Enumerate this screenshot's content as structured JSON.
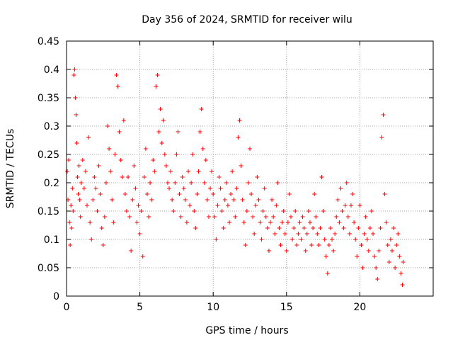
{
  "chart_data": {
    "type": "scatter",
    "title": "Day 356 of 2024, SRMTID for receiver wilu",
    "xlabel": "GPS time / hours",
    "ylabel": "SRMTID / TECUs",
    "xlim": [
      0,
      25
    ],
    "ylim": [
      0,
      0.45
    ],
    "xticks": [
      0,
      5,
      10,
      15,
      20
    ],
    "xtick_labels": [
      "0",
      "5",
      "10",
      "15",
      "20"
    ],
    "yticks": [
      0,
      0.05,
      0.1,
      0.15,
      0.2,
      0.25,
      0.3,
      0.35,
      0.4,
      0.45
    ],
    "ytick_labels": [
      "0",
      "0.05",
      "0.1",
      "0.15",
      "0.2",
      "0.25",
      "0.3",
      "0.35",
      "0.4",
      "0.45"
    ],
    "grid": true,
    "marker": "+",
    "color": "#ff0000",
    "series": [
      {
        "name": "SRMTID",
        "points": [
          [
            0.05,
            0.22
          ],
          [
            0.1,
            0.17
          ],
          [
            0.15,
            0.24
          ],
          [
            0.2,
            0.13
          ],
          [
            0.25,
            0.09
          ],
          [
            0.3,
            0.16
          ],
          [
            0.35,
            0.12
          ],
          [
            0.4,
            0.19
          ],
          [
            0.45,
            0.15
          ],
          [
            0.5,
            0.39
          ],
          [
            0.55,
            0.4
          ],
          [
            0.6,
            0.35
          ],
          [
            0.65,
            0.32
          ],
          [
            0.7,
            0.27
          ],
          [
            0.75,
            0.21
          ],
          [
            0.8,
            0.18
          ],
          [
            0.85,
            0.23
          ],
          [
            0.9,
            0.17
          ],
          [
            0.95,
            0.14
          ],
          [
            1.0,
            0.2
          ],
          [
            1.1,
            0.24
          ],
          [
            1.2,
            0.19
          ],
          [
            1.3,
            0.22
          ],
          [
            1.4,
            0.16
          ],
          [
            1.5,
            0.28
          ],
          [
            1.6,
            0.13
          ],
          [
            1.7,
            0.1
          ],
          [
            1.8,
            0.17
          ],
          [
            1.9,
            0.21
          ],
          [
            2.0,
            0.19
          ],
          [
            2.1,
            0.15
          ],
          [
            2.2,
            0.23
          ],
          [
            2.3,
            0.18
          ],
          [
            2.4,
            0.12
          ],
          [
            2.5,
            0.09
          ],
          [
            2.6,
            0.14
          ],
          [
            2.7,
            0.2
          ],
          [
            2.8,
            0.3
          ],
          [
            2.9,
            0.26
          ],
          [
            3.0,
            0.22
          ],
          [
            3.1,
            0.17
          ],
          [
            3.2,
            0.13
          ],
          [
            3.3,
            0.25
          ],
          [
            3.4,
            0.39
          ],
          [
            3.5,
            0.37
          ],
          [
            3.6,
            0.29
          ],
          [
            3.7,
            0.24
          ],
          [
            3.8,
            0.21
          ],
          [
            3.9,
            0.31
          ],
          [
            4.0,
            0.18
          ],
          [
            4.1,
            0.15
          ],
          [
            4.2,
            0.21
          ],
          [
            4.3,
            0.14
          ],
          [
            4.4,
            0.08
          ],
          [
            4.5,
            0.17
          ],
          [
            4.6,
            0.23
          ],
          [
            4.7,
            0.19
          ],
          [
            4.8,
            0.13
          ],
          [
            4.9,
            0.16
          ],
          [
            5.0,
            0.11
          ],
          [
            5.1,
            0.15
          ],
          [
            5.2,
            0.07
          ],
          [
            5.3,
            0.21
          ],
          [
            5.4,
            0.26
          ],
          [
            5.5,
            0.18
          ],
          [
            5.6,
            0.14
          ],
          [
            5.7,
            0.2
          ],
          [
            5.8,
            0.17
          ],
          [
            5.9,
            0.24
          ],
          [
            6.0,
            0.22
          ],
          [
            6.1,
            0.37
          ],
          [
            6.2,
            0.39
          ],
          [
            6.3,
            0.29
          ],
          [
            6.4,
            0.33
          ],
          [
            6.5,
            0.27
          ],
          [
            6.6,
            0.31
          ],
          [
            6.7,
            0.25
          ],
          [
            6.8,
            0.23
          ],
          [
            6.9,
            0.2
          ],
          [
            7.0,
            0.19
          ],
          [
            7.1,
            0.22
          ],
          [
            7.2,
            0.17
          ],
          [
            7.3,
            0.15
          ],
          [
            7.4,
            0.2
          ],
          [
            7.5,
            0.25
          ],
          [
            7.6,
            0.29
          ],
          [
            7.7,
            0.18
          ],
          [
            7.8,
            0.14
          ],
          [
            7.9,
            0.21
          ],
          [
            8.0,
            0.19
          ],
          [
            8.1,
            0.17
          ],
          [
            8.2,
            0.13
          ],
          [
            8.3,
            0.22
          ],
          [
            8.4,
            0.16
          ],
          [
            8.5,
            0.2
          ],
          [
            8.6,
            0.25
          ],
          [
            8.7,
            0.15
          ],
          [
            8.8,
            0.12
          ],
          [
            8.9,
            0.18
          ],
          [
            9.0,
            0.22
          ],
          [
            9.1,
            0.29
          ],
          [
            9.2,
            0.33
          ],
          [
            9.3,
            0.26
          ],
          [
            9.4,
            0.2
          ],
          [
            9.5,
            0.24
          ],
          [
            9.6,
            0.17
          ],
          [
            9.7,
            0.14
          ],
          [
            9.8,
            0.19
          ],
          [
            9.9,
            0.22
          ],
          [
            10.0,
            0.18
          ],
          [
            10.1,
            0.14
          ],
          [
            10.2,
            0.1
          ],
          [
            10.3,
            0.16
          ],
          [
            10.4,
            0.21
          ],
          [
            10.5,
            0.19
          ],
          [
            10.6,
            0.15
          ],
          [
            10.7,
            0.12
          ],
          [
            10.8,
            0.17
          ],
          [
            10.9,
            0.2
          ],
          [
            11.0,
            0.16
          ],
          [
            11.1,
            0.13
          ],
          [
            11.2,
            0.18
          ],
          [
            11.3,
            0.22
          ],
          [
            11.4,
            0.17
          ],
          [
            11.5,
            0.14
          ],
          [
            11.6,
            0.19
          ],
          [
            11.7,
            0.28
          ],
          [
            11.8,
            0.31
          ],
          [
            11.9,
            0.23
          ],
          [
            12.0,
            0.17
          ],
          [
            12.1,
            0.13
          ],
          [
            12.2,
            0.09
          ],
          [
            12.3,
            0.15
          ],
          [
            12.4,
            0.2
          ],
          [
            12.5,
            0.26
          ],
          [
            12.6,
            0.18
          ],
          [
            12.7,
            0.14
          ],
          [
            12.8,
            0.11
          ],
          [
            12.9,
            0.16
          ],
          [
            13.0,
            0.21
          ],
          [
            13.1,
            0.17
          ],
          [
            13.2,
            0.13
          ],
          [
            13.3,
            0.1
          ],
          [
            13.4,
            0.15
          ],
          [
            13.5,
            0.19
          ],
          [
            13.6,
            0.14
          ],
          [
            13.7,
            0.12
          ],
          [
            13.8,
            0.08
          ],
          [
            13.9,
            0.13
          ],
          [
            14.0,
            0.17
          ],
          [
            14.1,
            0.14
          ],
          [
            14.2,
            0.11
          ],
          [
            14.3,
            0.16
          ],
          [
            14.4,
            0.2
          ],
          [
            14.5,
            0.12
          ],
          [
            14.6,
            0.09
          ],
          [
            14.7,
            0.13
          ],
          [
            14.8,
            0.15
          ],
          [
            14.9,
            0.11
          ],
          [
            15.0,
            0.08
          ],
          [
            15.1,
            0.13
          ],
          [
            15.2,
            0.18
          ],
          [
            15.3,
            0.14
          ],
          [
            15.4,
            0.1
          ],
          [
            15.5,
            0.12
          ],
          [
            15.6,
            0.15
          ],
          [
            15.7,
            0.09
          ],
          [
            15.8,
            0.11
          ],
          [
            15.9,
            0.13
          ],
          [
            16.0,
            0.1
          ],
          [
            16.1,
            0.14
          ],
          [
            16.2,
            0.12
          ],
          [
            16.3,
            0.08
          ],
          [
            16.4,
            0.11
          ],
          [
            16.5,
            0.15
          ],
          [
            16.6,
            0.13
          ],
          [
            16.7,
            0.09
          ],
          [
            16.8,
            0.12
          ],
          [
            16.9,
            0.18
          ],
          [
            17.0,
            0.14
          ],
          [
            17.1,
            0.11
          ],
          [
            17.2,
            0.09
          ],
          [
            17.3,
            0.12
          ],
          [
            17.4,
            0.21
          ],
          [
            17.5,
            0.15
          ],
          [
            17.6,
            0.1
          ],
          [
            17.7,
            0.07
          ],
          [
            17.8,
            0.04
          ],
          [
            17.9,
            0.09
          ],
          [
            18.0,
            0.12
          ],
          [
            18.1,
            0.1
          ],
          [
            18.2,
            0.08
          ],
          [
            18.3,
            0.11
          ],
          [
            18.4,
            0.14
          ],
          [
            18.5,
            0.17
          ],
          [
            18.6,
            0.13
          ],
          [
            18.7,
            0.19
          ],
          [
            18.8,
            0.15
          ],
          [
            18.9,
            0.12
          ],
          [
            19.0,
            0.16
          ],
          [
            19.1,
            0.2
          ],
          [
            19.2,
            0.14
          ],
          [
            19.3,
            0.11
          ],
          [
            19.4,
            0.16
          ],
          [
            19.5,
            0.18
          ],
          [
            19.6,
            0.13
          ],
          [
            19.7,
            0.1
          ],
          [
            19.8,
            0.07
          ],
          [
            19.9,
            0.12
          ],
          [
            20.0,
            0.16
          ],
          [
            20.1,
            0.09
          ],
          [
            20.2,
            0.05
          ],
          [
            20.3,
            0.11
          ],
          [
            20.4,
            0.14
          ],
          [
            20.5,
            0.1
          ],
          [
            20.6,
            0.08
          ],
          [
            20.7,
            0.12
          ],
          [
            20.8,
            0.15
          ],
          [
            20.9,
            0.11
          ],
          [
            21.0,
            0.07
          ],
          [
            21.1,
            0.05
          ],
          [
            21.2,
            0.03
          ],
          [
            21.3,
            0.08
          ],
          [
            21.4,
            0.12
          ],
          [
            21.5,
            0.28
          ],
          [
            21.6,
            0.32
          ],
          [
            21.7,
            0.18
          ],
          [
            21.8,
            0.13
          ],
          [
            21.9,
            0.09
          ],
          [
            22.0,
            0.06
          ],
          [
            22.1,
            0.1
          ],
          [
            22.2,
            0.08
          ],
          [
            22.3,
            0.12
          ],
          [
            22.4,
            0.05
          ],
          [
            22.5,
            0.09
          ],
          [
            22.6,
            0.11
          ],
          [
            22.7,
            0.07
          ],
          [
            22.8,
            0.04
          ],
          [
            22.9,
            0.02
          ],
          [
            22.95,
            0.06
          ]
        ]
      }
    ]
  }
}
